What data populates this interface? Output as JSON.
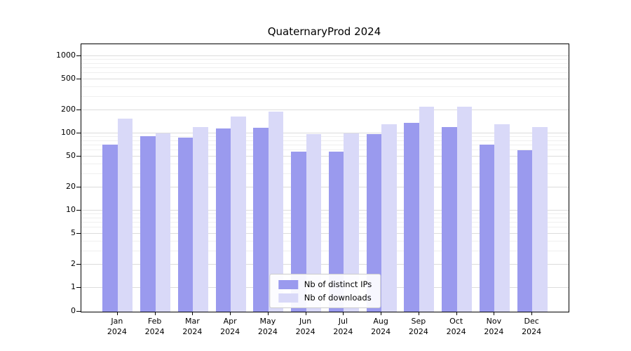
{
  "chart_data": {
    "type": "bar",
    "title": "QuaternaryProd 2024",
    "yscale": "symlog",
    "grid": true,
    "legend_position": "bottom-center",
    "yticks": [
      0,
      1,
      2,
      5,
      10,
      20,
      50,
      100,
      200,
      500,
      1000
    ],
    "ylim": [
      0,
      1400
    ],
    "categories": [
      {
        "month": "Jan",
        "year": "2024"
      },
      {
        "month": "Feb",
        "year": "2024"
      },
      {
        "month": "Mar",
        "year": "2024"
      },
      {
        "month": "Apr",
        "year": "2024"
      },
      {
        "month": "May",
        "year": "2024"
      },
      {
        "month": "Jun",
        "year": "2024"
      },
      {
        "month": "Jul",
        "year": "2024"
      },
      {
        "month": "Aug",
        "year": "2024"
      },
      {
        "month": "Sep",
        "year": "2024"
      },
      {
        "month": "Oct",
        "year": "2024"
      },
      {
        "month": "Nov",
        "year": "2024"
      },
      {
        "month": "Dec",
        "year": "2024"
      }
    ],
    "series": [
      {
        "name": "Nb of distinct IPs",
        "color": "#9a9aee",
        "values": [
          72,
          92,
          88,
          115,
          118,
          58,
          58,
          97,
          138,
          122,
          72,
          60
        ]
      },
      {
        "name": "Nb of downloads",
        "color": "#d9d9f8",
        "values": [
          155,
          100,
          120,
          165,
          190,
          97,
          100,
          130,
          220,
          220,
          130,
          122
        ]
      }
    ]
  }
}
